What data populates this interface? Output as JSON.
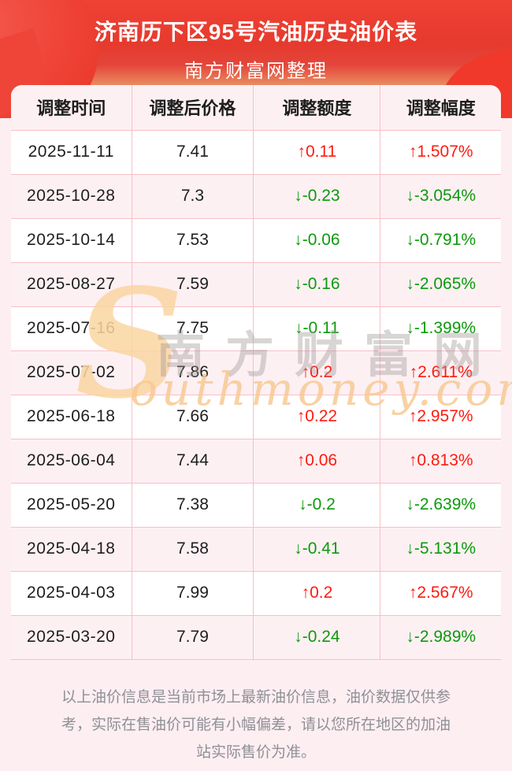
{
  "header": {
    "title": "济南历下区95号汽油历史油价表",
    "subtitle": "南方财富网整理"
  },
  "table": {
    "columns": [
      "调整时间",
      "调整后价格",
      "调整额度",
      "调整幅度"
    ],
    "rows": [
      {
        "date": "2025-11-11",
        "price": "7.41",
        "change": "↑0.11",
        "percent": "↑1.507%",
        "direction": "up"
      },
      {
        "date": "2025-10-28",
        "price": "7.3",
        "change": "↓-0.23",
        "percent": "↓-3.054%",
        "direction": "down"
      },
      {
        "date": "2025-10-14",
        "price": "7.53",
        "change": "↓-0.06",
        "percent": "↓-0.791%",
        "direction": "down"
      },
      {
        "date": "2025-08-27",
        "price": "7.59",
        "change": "↓-0.16",
        "percent": "↓-2.065%",
        "direction": "down"
      },
      {
        "date": "2025-07-16",
        "price": "7.75",
        "change": "↓-0.11",
        "percent": "↓-1.399%",
        "direction": "down"
      },
      {
        "date": "2025-07-02",
        "price": "7.86",
        "change": "↑0.2",
        "percent": "↑2.611%",
        "direction": "up"
      },
      {
        "date": "2025-06-18",
        "price": "7.66",
        "change": "↑0.22",
        "percent": "↑2.957%",
        "direction": "up"
      },
      {
        "date": "2025-06-04",
        "price": "7.44",
        "change": "↑0.06",
        "percent": "↑0.813%",
        "direction": "up"
      },
      {
        "date": "2025-05-20",
        "price": "7.38",
        "change": "↓-0.2",
        "percent": "↓-2.639%",
        "direction": "down"
      },
      {
        "date": "2025-04-18",
        "price": "7.58",
        "change": "↓-0.41",
        "percent": "↓-5.131%",
        "direction": "down"
      },
      {
        "date": "2025-04-03",
        "price": "7.99",
        "change": "↑0.2",
        "percent": "↑2.567%",
        "direction": "up"
      },
      {
        "date": "2025-03-20",
        "price": "7.79",
        "change": "↓-0.24",
        "percent": "↓-2.989%",
        "direction": "down"
      }
    ]
  },
  "watermark": {
    "initial": "S",
    "cn": "南方财富网",
    "en": "outhmoney.com"
  },
  "footer": {
    "disclaimer": "以上油价信息是当前市场上最新油价信息，油价数据仅供参考，实际在售油价可能有小幅偏差，请以您所在地区的加油站实际售价为准。"
  },
  "colors": {
    "up": "#fe1b10",
    "down": "#0c9a0c",
    "banner_red": "#e93a2e",
    "row_alt": "#fdf0f3",
    "grid_border": "#f7bfc7",
    "page_background": "#fdeef2"
  }
}
